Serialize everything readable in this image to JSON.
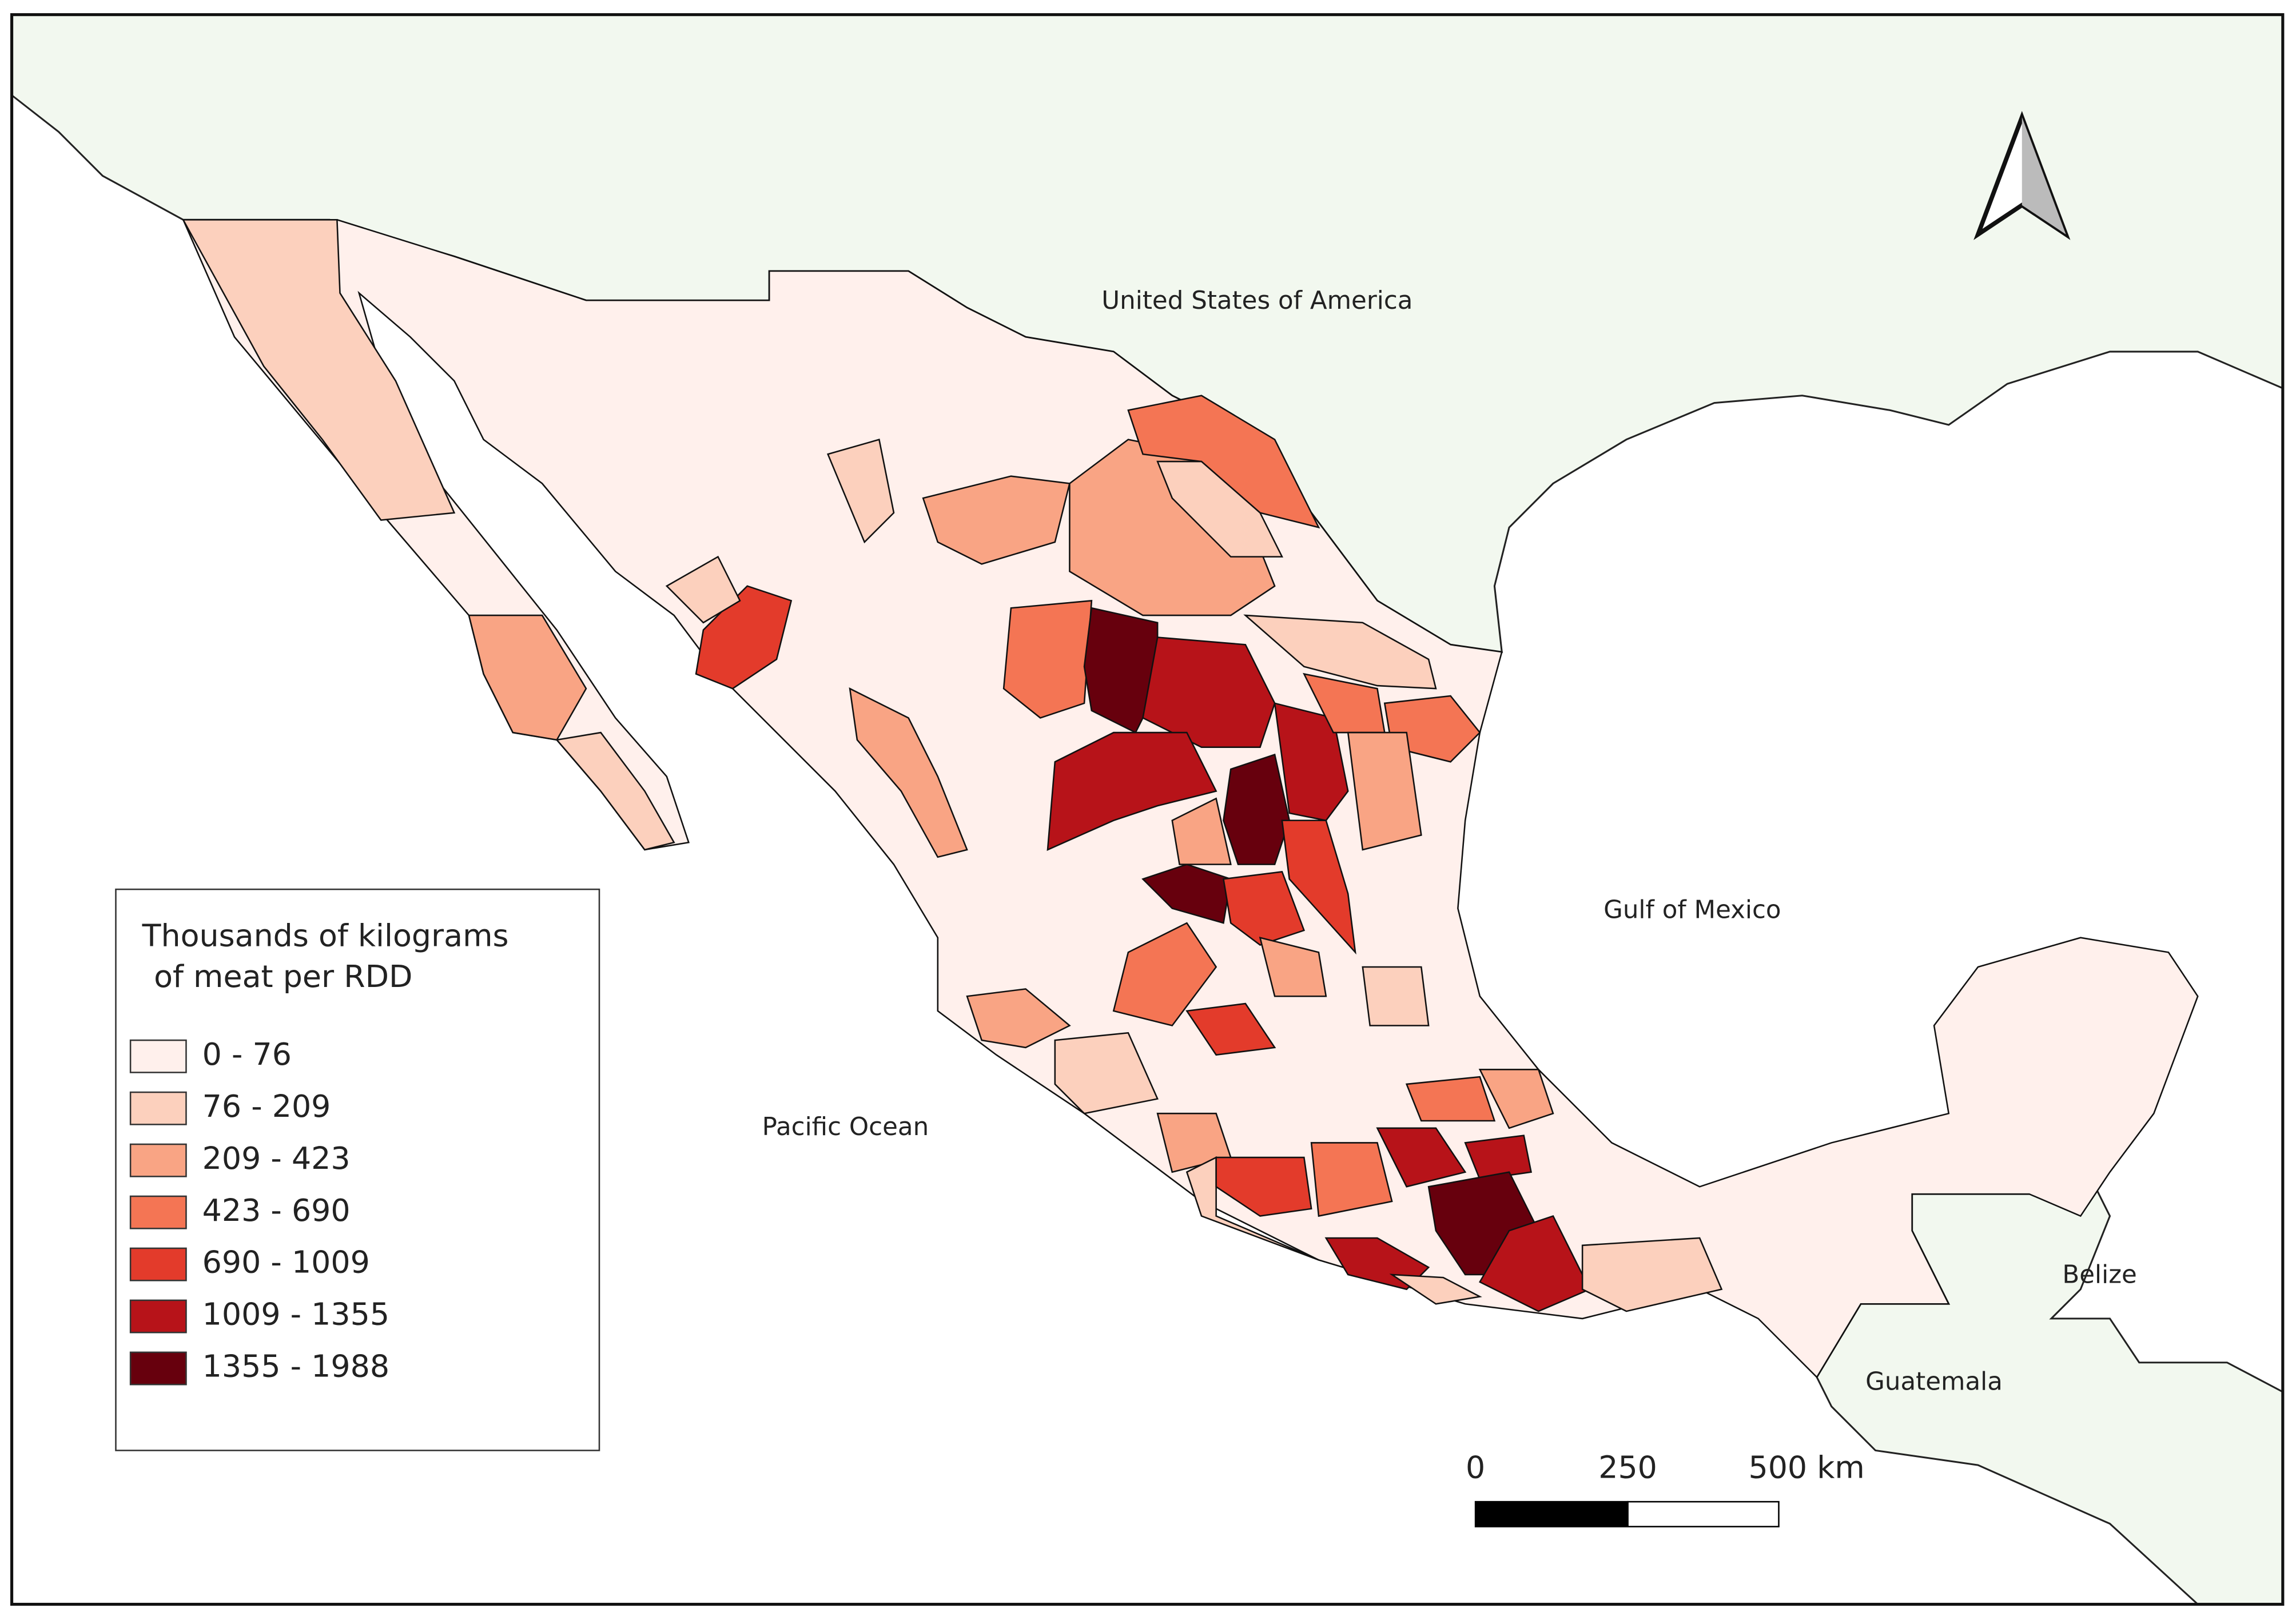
{
  "labels": {
    "usa": "United States of America",
    "gulf": "Gulf of Mexico",
    "pacific": "Pacific Ocean",
    "belize": "Belize",
    "guatemala": "Guatemala"
  },
  "legend": {
    "title": [
      "Thousands of kilograms",
      "of meat per RDD"
    ],
    "items": [
      {
        "label": "0 - 76",
        "color": "#fff0ec"
      },
      {
        "label": "76 - 209",
        "color": "#fcd0bd"
      },
      {
        "label": "209 - 423",
        "color": "#f9a484"
      },
      {
        "label": "423 - 690",
        "color": "#f47554"
      },
      {
        "label": "690 - 1009",
        "color": "#e33b2b"
      },
      {
        "label": "1009 - 1355",
        "color": "#b71319"
      },
      {
        "label": "1355 - 1988",
        "color": "#67000d"
      }
    ]
  },
  "scale_bar": {
    "labels": [
      "0",
      "250",
      "500 km"
    ]
  }
}
